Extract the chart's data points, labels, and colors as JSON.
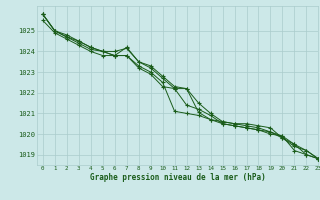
{
  "title": "Graphe pression niveau de la mer (hPa)",
  "bg_color": "#cce8e8",
  "grid_color": "#aacccc",
  "line_color": "#1a5c1a",
  "marker_color": "#1a5c1a",
  "xlim": [
    -0.5,
    23
  ],
  "ylim": [
    1018.5,
    1026.2
  ],
  "yticks": [
    1019,
    1020,
    1021,
    1022,
    1023,
    1024,
    1025
  ],
  "xticks": [
    0,
    1,
    2,
    3,
    4,
    5,
    6,
    7,
    8,
    9,
    10,
    11,
    12,
    13,
    14,
    15,
    16,
    17,
    18,
    19,
    20,
    21,
    22,
    23
  ],
  "series": [
    [
      1025.8,
      1025.0,
      1024.8,
      1024.5,
      1024.2,
      1024.0,
      1024.0,
      1024.15,
      1023.5,
      1023.3,
      1022.8,
      1022.3,
      1022.2,
      1021.05,
      1020.7,
      1020.6,
      1020.5,
      1020.5,
      1020.4,
      1020.3,
      1019.8,
      1019.5,
      1019.0,
      1018.8
    ],
    [
      1025.8,
      1025.0,
      1024.7,
      1024.5,
      1024.2,
      1024.0,
      1023.8,
      1024.2,
      1023.5,
      1023.2,
      1022.7,
      1022.2,
      1022.2,
      1021.5,
      1021.0,
      1020.6,
      1020.5,
      1020.4,
      1020.3,
      1020.1,
      1019.9,
      1019.2,
      1019.0,
      1018.8
    ],
    [
      1025.8,
      1025.0,
      1024.7,
      1024.4,
      1024.1,
      1024.0,
      1023.8,
      1023.8,
      1023.3,
      1023.0,
      1022.5,
      1021.1,
      1021.0,
      1020.9,
      1020.7,
      1020.5,
      1020.4,
      1020.3,
      1020.2,
      1020.0,
      1019.9,
      1019.5,
      1019.2,
      1018.8
    ],
    [
      1025.5,
      1024.9,
      1024.6,
      1024.3,
      1024.0,
      1023.8,
      1023.8,
      1023.8,
      1023.2,
      1022.9,
      1022.3,
      1022.2,
      1021.4,
      1021.2,
      1020.9,
      1020.5,
      1020.4,
      1020.3,
      1020.2,
      1020.1,
      1019.8,
      1019.4,
      1019.2,
      1018.8
    ]
  ]
}
